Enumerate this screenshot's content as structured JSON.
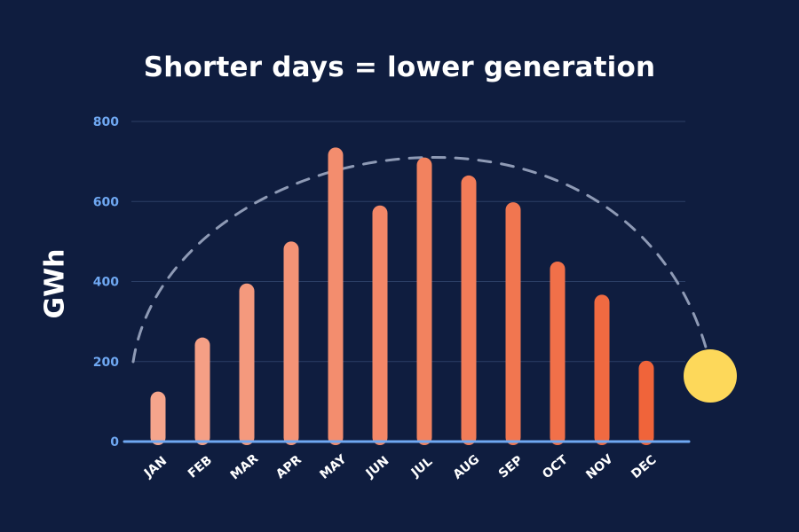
{
  "chart_data": {
    "type": "bar",
    "title": "Shorter days = lower generation",
    "xlabel": "",
    "ylabel": "GWh",
    "categories": [
      "JAN",
      "FEB",
      "MAR",
      "APR",
      "MAY",
      "JUN",
      "JUL",
      "AUG",
      "SEP",
      "OCT",
      "NOV",
      "DEC"
    ],
    "values": [
      125,
      260,
      395,
      500,
      735,
      590,
      710,
      665,
      598,
      450,
      367,
      202
    ],
    "ylim": [
      0,
      800
    ],
    "yticks": [
      0,
      200,
      400,
      600,
      800
    ],
    "grid": true,
    "legend": "none",
    "colors": {
      "background": "#0f1d3f",
      "gridline": "#2c3f66",
      "baseline": "#6fa8f2",
      "bar_start": "#f5a58c",
      "bar_end": "#f0643a",
      "sun": "#fdd85a",
      "arc": "#8e9ab5"
    },
    "decorations": [
      "dashed-sun-path-arc",
      "sun-icon"
    ]
  }
}
